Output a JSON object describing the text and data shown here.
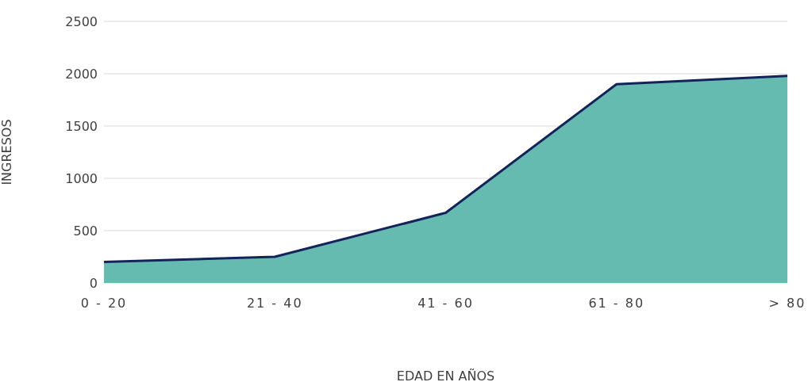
{
  "chart_data": {
    "type": "area",
    "xlabel": "EDAD EN AÑOS",
    "ylabel": "INGRESOS",
    "categories": [
      "0 - 20",
      "21 - 40",
      "41 - 60",
      "61 - 80",
      "> 80"
    ],
    "series": [
      {
        "color": "#66bbb0",
        "values": [
          200,
          250,
          670,
          1900,
          1980
        ]
      }
    ],
    "ylim": [
      0,
      2500
    ],
    "yticks": [
      0,
      500,
      1000,
      1500,
      2000,
      2500
    ],
    "grid": "y"
  }
}
